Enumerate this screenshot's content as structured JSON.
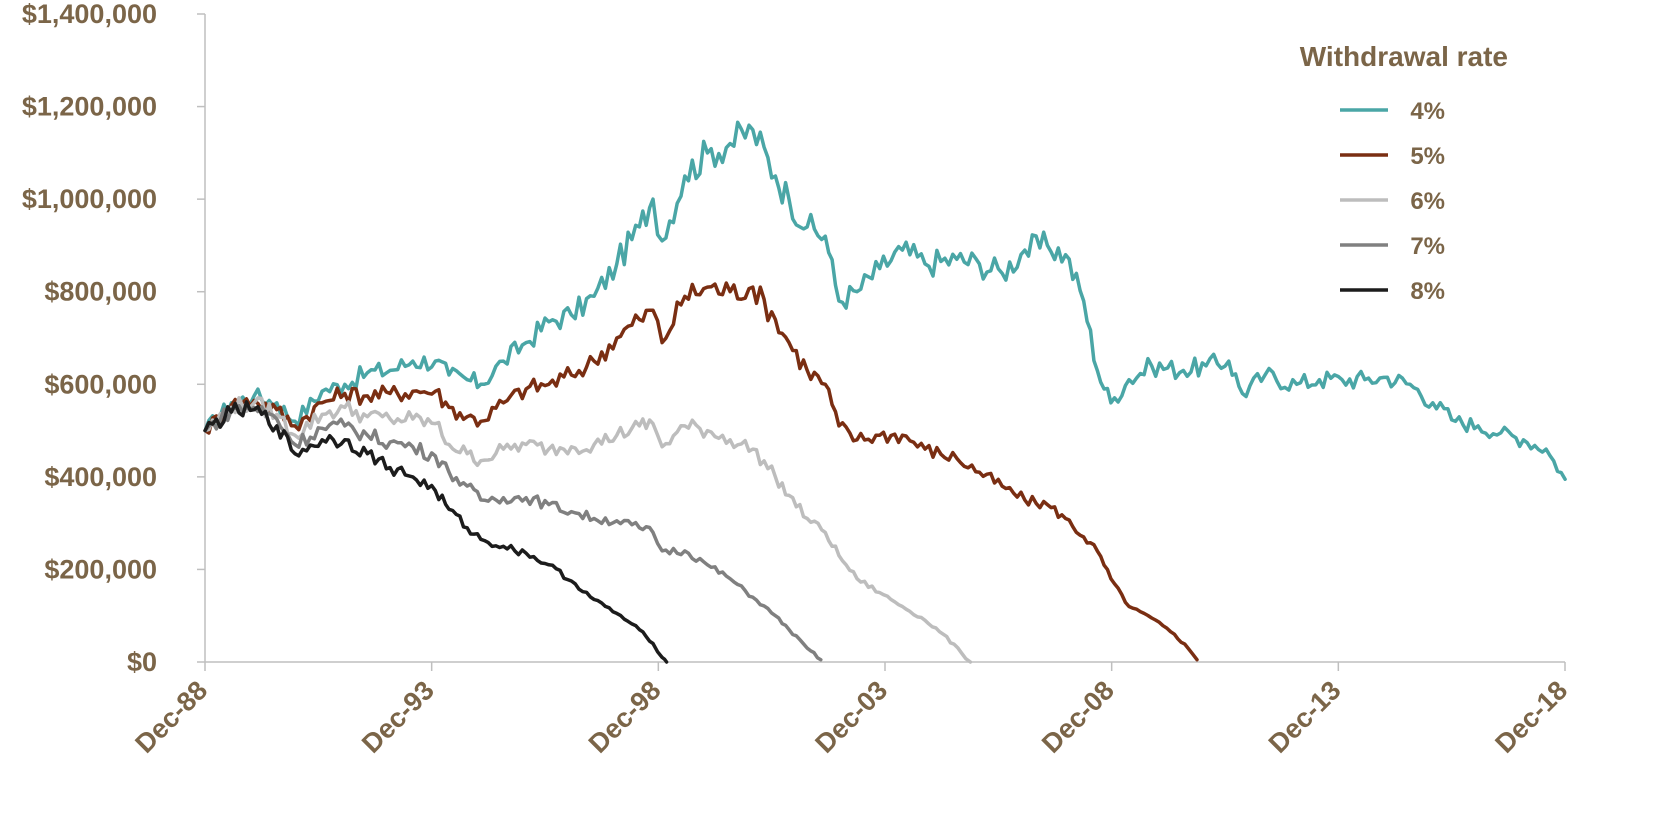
{
  "chart_data": {
    "type": "line",
    "title": "",
    "xlabel": "",
    "ylabel": "",
    "x_ticks": [
      "Dec-88",
      "Dec-93",
      "Dec-98",
      "Dec-03",
      "Dec-08",
      "Dec-13",
      "Dec-18"
    ],
    "x_range_years": [
      1988.917,
      2018.917
    ],
    "y_ticks": [
      "$0",
      "$200,000",
      "$400,000",
      "$600,000",
      "$800,000",
      "$1,000,000",
      "$1,200,000",
      "$1,400,000"
    ],
    "ylim": [
      0,
      1400000
    ],
    "grid": false,
    "legend": {
      "title": "Withdrawal rate",
      "placement": "top-right"
    },
    "series": [
      {
        "name": "4%",
        "color": "#4aa6a6",
        "points": [
          [
            1988.92,
            500000
          ],
          [
            1989.5,
            560000
          ],
          [
            1990.0,
            575000
          ],
          [
            1990.5,
            560000
          ],
          [
            1990.9,
            520000
          ],
          [
            1991.5,
            585000
          ],
          [
            1992.0,
            600000
          ],
          [
            1992.5,
            625000
          ],
          [
            1993.0,
            630000
          ],
          [
            1993.5,
            650000
          ],
          [
            1994.0,
            650000
          ],
          [
            1994.3,
            620000
          ],
          [
            1994.7,
            610000
          ],
          [
            1995.0,
            600000
          ],
          [
            1995.5,
            650000
          ],
          [
            1996.0,
            690000
          ],
          [
            1996.5,
            735000
          ],
          [
            1997.0,
            750000
          ],
          [
            1997.5,
            790000
          ],
          [
            1998.0,
            860000
          ],
          [
            1998.5,
            940000
          ],
          [
            1998.8,
            1000000
          ],
          [
            1999.0,
            910000
          ],
          [
            1999.5,
            1050000
          ],
          [
            2000.0,
            1100000
          ],
          [
            2000.5,
            1120000
          ],
          [
            2001.0,
            1150000
          ],
          [
            2001.5,
            1050000
          ],
          [
            2001.8,
            1000000
          ],
          [
            2002.2,
            940000
          ],
          [
            2002.6,
            920000
          ],
          [
            2002.9,
            780000
          ],
          [
            2003.3,
            800000
          ],
          [
            2003.8,
            850000
          ],
          [
            2004.3,
            890000
          ],
          [
            2004.8,
            860000
          ],
          [
            2005.5,
            870000
          ],
          [
            2006.0,
            860000
          ],
          [
            2006.5,
            840000
          ],
          [
            2007.0,
            890000
          ],
          [
            2007.5,
            900000
          ],
          [
            2007.9,
            880000
          ],
          [
            2008.3,
            780000
          ],
          [
            2008.6,
            630000
          ],
          [
            2008.9,
            560000
          ],
          [
            2009.3,
            610000
          ],
          [
            2009.8,
            640000
          ],
          [
            2010.5,
            630000
          ],
          [
            2011.0,
            640000
          ],
          [
            2011.5,
            650000
          ],
          [
            2011.8,
            580000
          ],
          [
            2012.3,
            620000
          ],
          [
            2013.0,
            600000
          ],
          [
            2013.5,
            610000
          ],
          [
            2014.0,
            610000
          ],
          [
            2014.5,
            610000
          ],
          [
            2015.0,
            615000
          ],
          [
            2015.5,
            600000
          ],
          [
            2016.0,
            560000
          ],
          [
            2016.5,
            520000
          ],
          [
            2017.0,
            510000
          ],
          [
            2017.5,
            495000
          ],
          [
            2018.0,
            480000
          ],
          [
            2018.5,
            460000
          ],
          [
            2018.92,
            395000
          ]
        ]
      },
      {
        "name": "5%",
        "color": "#7a2e12",
        "points": [
          [
            1988.92,
            500000
          ],
          [
            1989.5,
            555000
          ],
          [
            1990.0,
            565000
          ],
          [
            1990.5,
            545000
          ],
          [
            1990.9,
            510000
          ],
          [
            1991.5,
            560000
          ],
          [
            1992.0,
            580000
          ],
          [
            1992.5,
            575000
          ],
          [
            1993.0,
            580000
          ],
          [
            1993.5,
            585000
          ],
          [
            1994.0,
            585000
          ],
          [
            1994.3,
            550000
          ],
          [
            1994.7,
            530000
          ],
          [
            1995.0,
            520000
          ],
          [
            1995.5,
            560000
          ],
          [
            1996.0,
            590000
          ],
          [
            1996.5,
            600000
          ],
          [
            1997.0,
            620000
          ],
          [
            1997.5,
            650000
          ],
          [
            1998.0,
            700000
          ],
          [
            1998.5,
            740000
          ],
          [
            1998.8,
            760000
          ],
          [
            1999.0,
            690000
          ],
          [
            1999.5,
            790000
          ],
          [
            2000.0,
            810000
          ],
          [
            2000.5,
            800000
          ],
          [
            2001.0,
            810000
          ],
          [
            2001.5,
            740000
          ],
          [
            2001.8,
            690000
          ],
          [
            2002.2,
            630000
          ],
          [
            2002.6,
            600000
          ],
          [
            2002.9,
            510000
          ],
          [
            2003.3,
            480000
          ],
          [
            2003.8,
            490000
          ],
          [
            2004.3,
            490000
          ],
          [
            2004.8,
            460000
          ],
          [
            2005.5,
            440000
          ],
          [
            2006.0,
            410000
          ],
          [
            2006.5,
            380000
          ],
          [
            2007.0,
            350000
          ],
          [
            2007.5,
            340000
          ],
          [
            2007.9,
            310000
          ],
          [
            2008.3,
            270000
          ],
          [
            2008.6,
            240000
          ],
          [
            2008.9,
            180000
          ],
          [
            2009.3,
            120000
          ],
          [
            2009.8,
            95000
          ],
          [
            2010.3,
            60000
          ],
          [
            2010.6,
            30000
          ],
          [
            2010.8,
            5000
          ]
        ]
      },
      {
        "name": "6%",
        "color": "#bdbdbd",
        "points": [
          [
            1988.92,
            500000
          ],
          [
            1989.5,
            550000
          ],
          [
            1990.0,
            560000
          ],
          [
            1990.5,
            535000
          ],
          [
            1990.9,
            490000
          ],
          [
            1991.5,
            535000
          ],
          [
            1992.0,
            550000
          ],
          [
            1992.5,
            530000
          ],
          [
            1993.0,
            525000
          ],
          [
            1993.5,
            525000
          ],
          [
            1994.0,
            515000
          ],
          [
            1994.3,
            470000
          ],
          [
            1994.7,
            450000
          ],
          [
            1995.0,
            435000
          ],
          [
            1995.5,
            460000
          ],
          [
            1996.0,
            470000
          ],
          [
            1996.5,
            460000
          ],
          [
            1997.0,
            465000
          ],
          [
            1997.5,
            470000
          ],
          [
            1998.0,
            490000
          ],
          [
            1998.5,
            510000
          ],
          [
            1998.8,
            515000
          ],
          [
            1999.0,
            465000
          ],
          [
            1999.5,
            510000
          ],
          [
            2000.0,
            500000
          ],
          [
            2000.5,
            480000
          ],
          [
            2001.0,
            460000
          ],
          [
            2001.5,
            400000
          ],
          [
            2001.8,
            360000
          ],
          [
            2002.2,
            310000
          ],
          [
            2002.6,
            280000
          ],
          [
            2002.9,
            230000
          ],
          [
            2003.3,
            180000
          ],
          [
            2003.8,
            150000
          ],
          [
            2004.3,
            120000
          ],
          [
            2004.8,
            90000
          ],
          [
            2005.2,
            60000
          ],
          [
            2005.6,
            20000
          ],
          [
            2005.8,
            0
          ]
        ]
      },
      {
        "name": "7%",
        "color": "#808080",
        "points": [
          [
            1988.92,
            500000
          ],
          [
            1989.5,
            545000
          ],
          [
            1990.0,
            550000
          ],
          [
            1990.5,
            525000
          ],
          [
            1990.9,
            470000
          ],
          [
            1991.5,
            505000
          ],
          [
            1992.0,
            510000
          ],
          [
            1992.5,
            490000
          ],
          [
            1993.0,
            475000
          ],
          [
            1993.5,
            465000
          ],
          [
            1994.0,
            445000
          ],
          [
            1994.3,
            410000
          ],
          [
            1994.7,
            380000
          ],
          [
            1995.0,
            350000
          ],
          [
            1995.5,
            355000
          ],
          [
            1996.0,
            355000
          ],
          [
            1996.5,
            340000
          ],
          [
            1997.0,
            325000
          ],
          [
            1997.5,
            310000
          ],
          [
            1998.0,
            305000
          ],
          [
            1998.5,
            290000
          ],
          [
            1998.8,
            280000
          ],
          [
            1999.0,
            240000
          ],
          [
            1999.5,
            240000
          ],
          [
            2000.0,
            210000
          ],
          [
            2000.5,
            180000
          ],
          [
            2001.0,
            140000
          ],
          [
            2001.5,
            100000
          ],
          [
            2001.8,
            70000
          ],
          [
            2002.2,
            30000
          ],
          [
            2002.5,
            5000
          ]
        ]
      },
      {
        "name": "8%",
        "color": "#1c1c1c",
        "points": [
          [
            1988.92,
            500000
          ],
          [
            1989.5,
            540000
          ],
          [
            1990.0,
            545000
          ],
          [
            1990.5,
            510000
          ],
          [
            1990.9,
            450000
          ],
          [
            1991.5,
            480000
          ],
          [
            1992.0,
            480000
          ],
          [
            1992.5,
            450000
          ],
          [
            1993.0,
            420000
          ],
          [
            1993.5,
            400000
          ],
          [
            1994.0,
            370000
          ],
          [
            1994.3,
            330000
          ],
          [
            1994.7,
            290000
          ],
          [
            1995.0,
            265000
          ],
          [
            1995.5,
            250000
          ],
          [
            1996.0,
            235000
          ],
          [
            1996.5,
            210000
          ],
          [
            1997.0,
            175000
          ],
          [
            1997.5,
            135000
          ],
          [
            1998.0,
            105000
          ],
          [
            1998.5,
            70000
          ],
          [
            1998.8,
            40000
          ],
          [
            1999.0,
            10000
          ],
          [
            1999.1,
            0
          ]
        ]
      }
    ]
  }
}
